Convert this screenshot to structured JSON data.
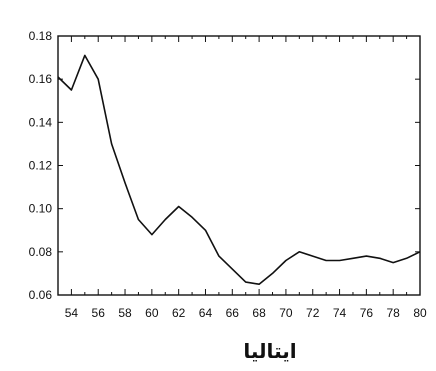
{
  "chart_data": {
    "type": "line",
    "title": "ایتالیا",
    "xlabel": "",
    "ylabel": "",
    "xlim": [
      53,
      80
    ],
    "ylim": [
      0.06,
      0.18
    ],
    "grid": false,
    "x_ticks": [
      54,
      56,
      58,
      60,
      62,
      64,
      66,
      68,
      70,
      72,
      74,
      76,
      78,
      80
    ],
    "y_ticks": [
      0.06,
      0.08,
      0.1,
      0.12,
      0.14,
      0.16,
      0.18
    ],
    "y_tick_labels": [
      "0.06",
      "0.08",
      "0.10",
      "0.12",
      "0.14",
      "0.16",
      "0.18"
    ],
    "series": [
      {
        "x": [
          53,
          54,
          55,
          56,
          57,
          58,
          59,
          60,
          61,
          62,
          63,
          64,
          65,
          66,
          67,
          68,
          69,
          70,
          71,
          72,
          73,
          74,
          75,
          76,
          77,
          78,
          79,
          80
        ],
        "values": [
          0.161,
          0.155,
          0.171,
          0.16,
          0.13,
          0.112,
          0.095,
          0.088,
          0.095,
          0.101,
          0.096,
          0.09,
          0.078,
          0.072,
          0.066,
          0.065,
          0.07,
          0.076,
          0.08,
          0.078,
          0.076,
          0.076,
          0.077,
          0.078,
          0.077,
          0.075,
          0.077,
          0.08
        ]
      }
    ]
  }
}
